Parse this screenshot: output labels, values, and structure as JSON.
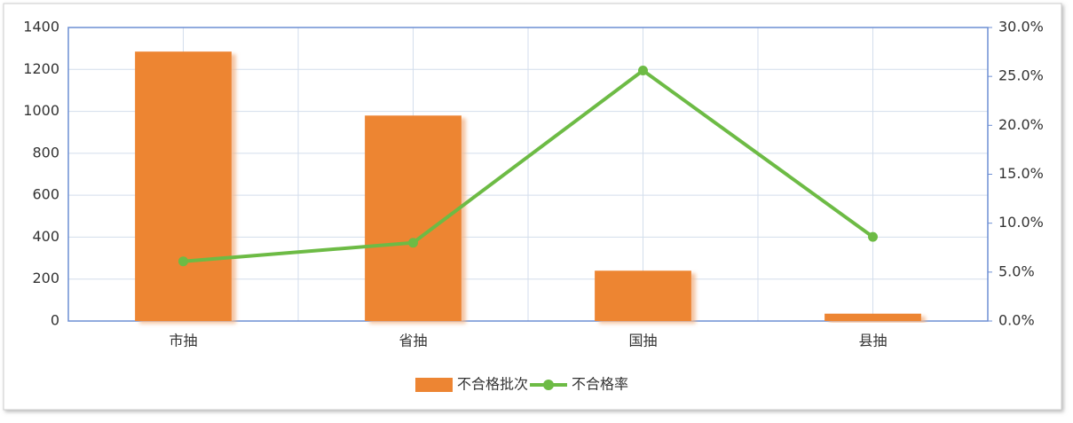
{
  "chart_data": {
    "type": "bar",
    "categories": [
      "市抽",
      "省抽",
      "国抽",
      "县抽"
    ],
    "series": [
      {
        "name": "不合格批次",
        "type": "bar",
        "color": "#ed8533",
        "values": [
          1285,
          980,
          240,
          35
        ]
      },
      {
        "name": "不合格率",
        "type": "line",
        "axis": "y2",
        "color": "#6dbb45",
        "values": [
          6.1,
          8.0,
          25.6,
          8.6
        ]
      }
    ],
    "ylim": [
      0,
      1400
    ],
    "yticks": [
      0,
      200,
      400,
      600,
      800,
      1000,
      1200,
      1400
    ],
    "y2lim": [
      0,
      30
    ],
    "y2ticks": [
      {
        "value": 0,
        "label": "0.0%"
      },
      {
        "value": 5,
        "label": "5.0%"
      },
      {
        "value": 10,
        "label": "10.0%"
      },
      {
        "value": 15,
        "label": "15.0%"
      },
      {
        "value": 20,
        "label": "20.0%"
      },
      {
        "value": 25,
        "label": "25.0%"
      },
      {
        "value": 30,
        "label": "30.0%"
      }
    ],
    "grid": true,
    "legend": "bottom"
  }
}
